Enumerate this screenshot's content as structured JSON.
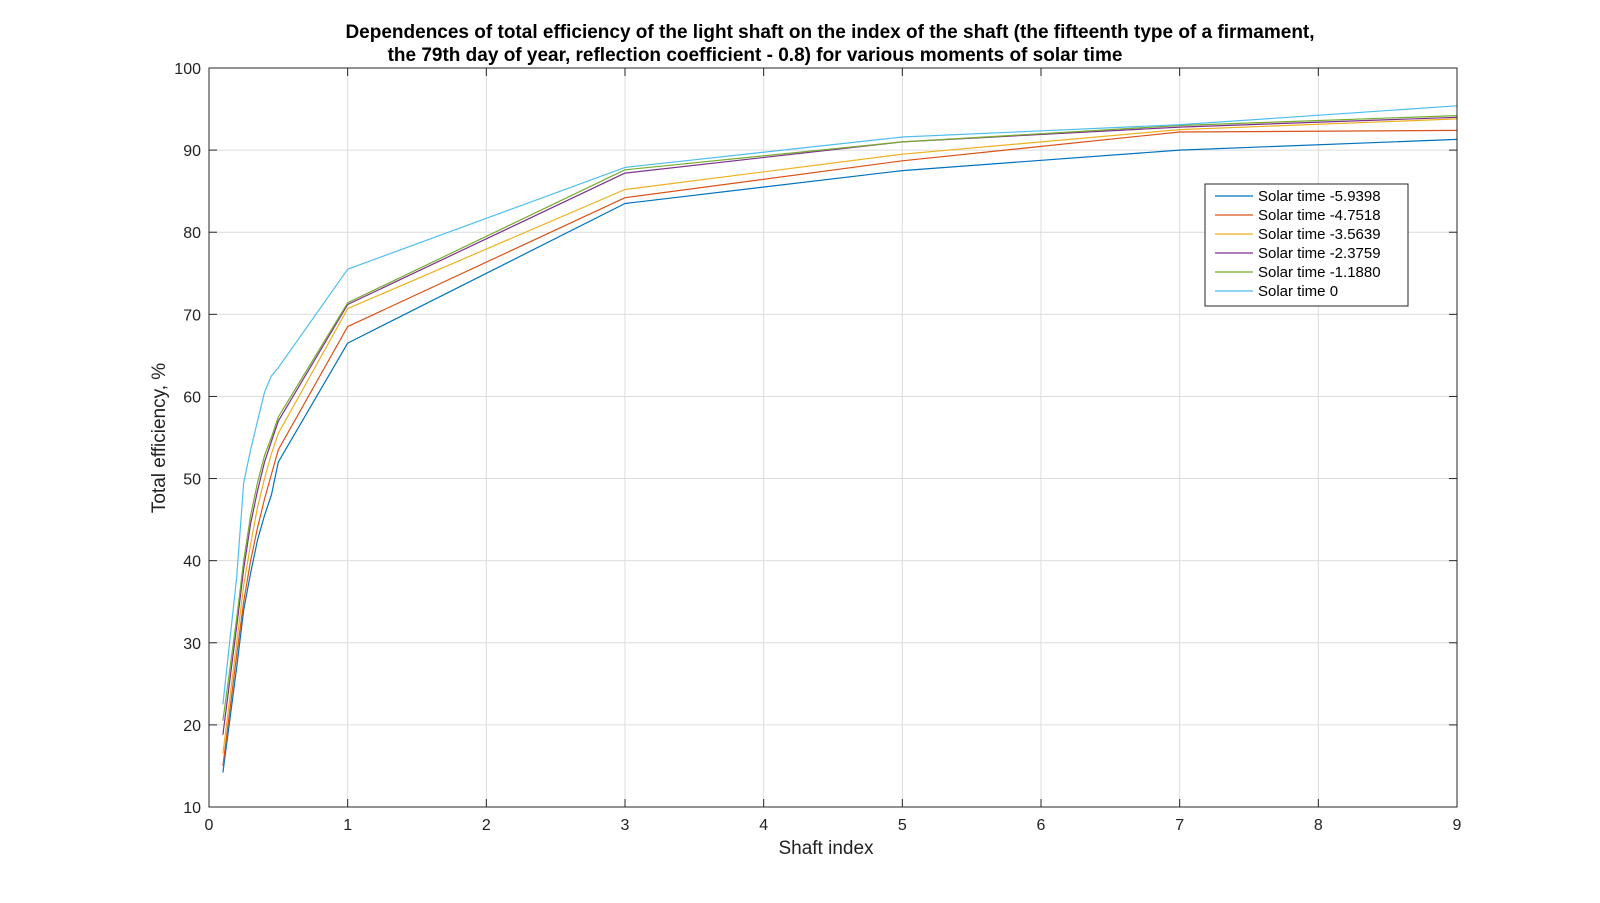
{
  "chart_data": {
    "type": "line",
    "title_lines": [
      "Dependences of total efficiency of the light shaft on the index of the shaft (the fifteenth type of a firmament,",
      "the 79th day of year, reflection coefficient - 0.8) for various moments of solar time"
    ],
    "xlabel": "Shaft index",
    "ylabel": "Total efficiency, %",
    "xlim": [
      0,
      9
    ],
    "ylim": [
      10,
      100
    ],
    "xticks": [
      0,
      1,
      2,
      3,
      4,
      5,
      6,
      7,
      8,
      9
    ],
    "yticks": [
      10,
      20,
      30,
      40,
      50,
      60,
      70,
      80,
      90,
      100
    ],
    "grid": true,
    "legend_position": "top-right",
    "x": [
      0.1,
      0.2,
      0.25,
      0.3,
      0.35,
      0.4,
      0.45,
      0.5,
      1,
      3,
      5,
      7,
      9
    ],
    "series": [
      {
        "name": "Solar time -5.9398",
        "color": "#0072BD",
        "values": [
          14.2,
          27.0,
          34.0,
          38.5,
          42.5,
          45.5,
          48.0,
          52.0,
          66.5,
          83.5,
          87.5,
          90.0,
          91.3
        ]
      },
      {
        "name": "Solar time -4.7518",
        "color": "#D95319",
        "values": [
          15.0,
          28.5,
          35.0,
          40.0,
          44.0,
          47.5,
          50.5,
          53.5,
          68.5,
          84.2,
          88.7,
          92.2,
          92.4
        ]
      },
      {
        "name": "Solar time -3.5639",
        "color": "#EDB120",
        "values": [
          16.5,
          30.0,
          37.0,
          42.0,
          46.5,
          50.0,
          53.0,
          55.5,
          70.7,
          85.2,
          89.5,
          92.5,
          93.8
        ]
      },
      {
        "name": "Solar time -2.3759",
        "color": "#7E2F8E",
        "values": [
          18.8,
          32.0,
          39.0,
          44.5,
          48.5,
          52.0,
          54.5,
          57.0,
          71.2,
          87.2,
          91.0,
          92.8,
          94.0
        ]
      },
      {
        "name": "Solar time -1.1880",
        "color": "#77AC30",
        "values": [
          20.5,
          33.0,
          40.0,
          45.5,
          49.5,
          52.8,
          55.0,
          57.5,
          71.4,
          87.6,
          91.0,
          93.0,
          94.2
        ]
      },
      {
        "name": "Solar time 0",
        "color": "#4DBEEE",
        "values": [
          22.5,
          38.0,
          49.5,
          53.5,
          57.0,
          60.5,
          62.5,
          63.5,
          75.5,
          87.9,
          91.6,
          93.1,
          95.4
        ]
      }
    ]
  }
}
